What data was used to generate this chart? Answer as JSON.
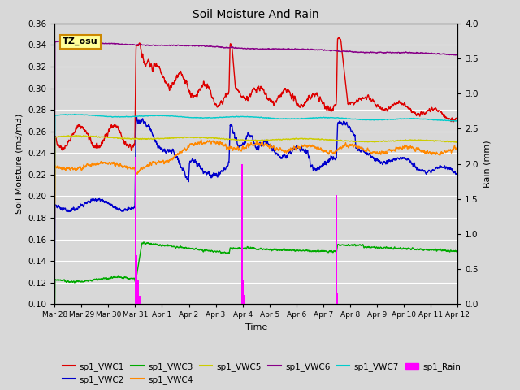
{
  "title": "Soil Moisture And Rain",
  "xlabel": "Time",
  "ylabel_left": "Soil Moisture (m3/m3)",
  "ylabel_right": "Rain (mm)",
  "ylim_left": [
    0.1,
    0.36
  ],
  "ylim_right": [
    0.0,
    4.0
  ],
  "annotation_text": "TZ_osu",
  "annotation_color": "#ffff99",
  "annotation_border": "#cc8800",
  "background_color": "#d8d8d8",
  "fig_bg_color": "#d8d8d8",
  "colors": {
    "VWC1": "#dd0000",
    "VWC2": "#0000cc",
    "VWC3": "#00aa00",
    "VWC4": "#ff8800",
    "VWC5": "#cccc00",
    "VWC6": "#880088",
    "VWC7": "#00cccc",
    "Rain": "#ff00ff"
  },
  "xtick_labels": [
    "Mar 28",
    "Mar 29",
    "Mar 30",
    "Mar 31",
    "Apr 1",
    "Apr 2",
    "Apr 3",
    "Apr 4",
    "Apr 5",
    "Apr 6",
    "Apr 7",
    "Apr 8",
    "Apr 9",
    "Apr 10",
    "Apr 11",
    "Apr 12"
  ],
  "yticks": [
    0.1,
    0.12,
    0.14,
    0.16,
    0.18,
    0.2,
    0.22,
    0.24,
    0.26,
    0.28,
    0.3,
    0.32,
    0.34,
    0.36
  ],
  "rain_yticks": [
    0.0,
    0.5,
    1.0,
    1.5,
    2.0,
    2.5,
    3.0,
    3.5,
    4.0
  ],
  "legend_labels": [
    "sp1_VWC1",
    "sp1_VWC2",
    "sp1_VWC3",
    "sp1_VWC4",
    "sp1_VWC5",
    "sp1_VWC6",
    "sp1_VWC7",
    "sp1_Rain"
  ],
  "figsize": [
    6.4,
    4.8
  ],
  "dpi": 100
}
